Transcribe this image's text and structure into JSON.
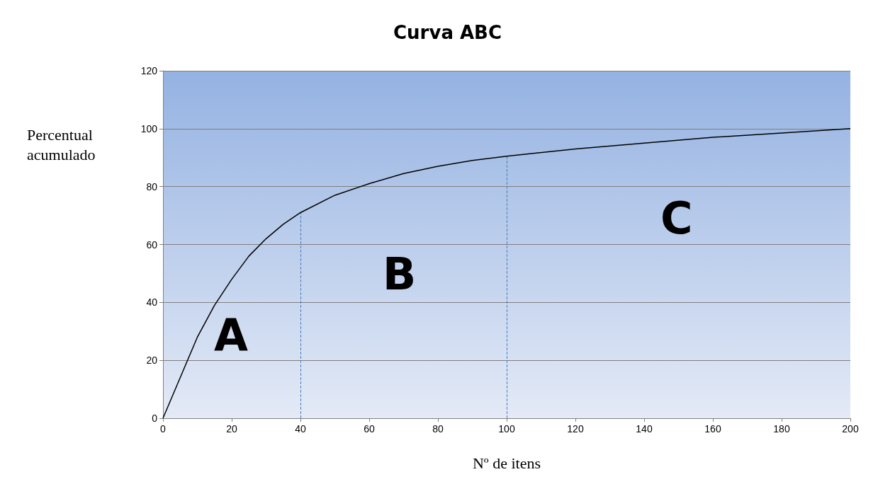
{
  "chart_data": {
    "type": "line",
    "title": "Curva ABC",
    "xlabel": "Nº de itens",
    "ylabel": "Percentual acumulado",
    "series": [
      {
        "color": "#000000",
        "x": [
          0,
          5,
          10,
          15,
          20,
          25,
          30,
          35,
          40,
          50,
          60,
          70,
          80,
          90,
          100,
          120,
          140,
          160,
          180,
          200
        ],
        "values": [
          0,
          14,
          28,
          39,
          48,
          56,
          62,
          67,
          71,
          77,
          81,
          84.5,
          87,
          89,
          90.5,
          93,
          95,
          97,
          98.5,
          100
        ]
      }
    ],
    "xlim": [
      0,
      200
    ],
    "xticks": [
      0,
      20,
      40,
      60,
      80,
      100,
      120,
      140,
      160,
      180,
      200
    ],
    "ylim": [
      0,
      120
    ],
    "yticks": [
      0,
      20,
      40,
      60,
      80,
      100,
      120
    ],
    "grid": "y",
    "marker": "none",
    "line_style": "solid",
    "ref_lines": [
      {
        "axis": "x",
        "value": 40,
        "color": "#4a7ebb",
        "line_style": "dashed"
      },
      {
        "axis": "x",
        "value": 100,
        "color": "#4a7ebb",
        "line_style": "dashed"
      }
    ],
    "annotations": [
      "A",
      "B",
      "C"
    ]
  }
}
